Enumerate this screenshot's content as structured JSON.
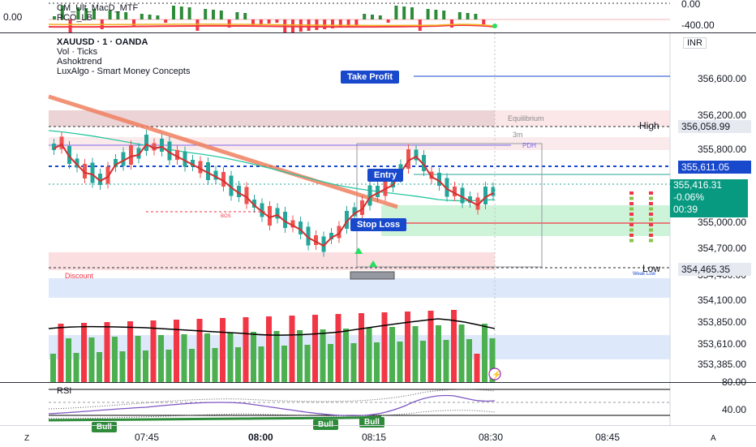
{
  "macd_pane": {
    "indicator_name": "CM_Ult_MacD_MTF",
    "indicator_sub": "RCO_LB",
    "left_value": "0.00",
    "axis_top": "0.00",
    "axis_bottom": "-400.00"
  },
  "main_pane": {
    "legend": {
      "symbol": "XAUUSD · 1 · OANDA",
      "line2": "Vol · Ticks",
      "line3": "Ashoktrend",
      "line4": "LuxAlgo - Smart Money Concepts"
    },
    "currency": "INR",
    "buttons": {
      "take_profit": "Take Profit",
      "entry": "Entry",
      "stop_loss": "Stop Loss"
    },
    "zone_labels": {
      "equilibrium": "Equilibrium",
      "pdh": "PDH",
      "three_m": "3m",
      "discount": "Discount",
      "bos": "BOS",
      "weak_low": "Weak Low"
    },
    "level_labels": {
      "high": "High",
      "low": "Low"
    },
    "price_axis": [
      "356,600.00",
      "356,200.00",
      "355,800.00",
      "355,000.00",
      "354,700.00",
      "354,400.00",
      "354,100.00",
      "353,850.00",
      "353,610.00",
      "353,385.00"
    ],
    "price_tags": {
      "high": "356,058.99",
      "entry_level": "355,611.05",
      "current": "355,416.31",
      "change": "-0.06%",
      "countdown": "00:39",
      "low": "354,465.35"
    },
    "colors": {
      "up": "#26a69a",
      "down": "#ef5350",
      "vol_up": "#4caf50",
      "vol_down": "#f23645",
      "accent_blue": "#1848cc",
      "trend_orange": "#f08060"
    }
  },
  "rsi_pane": {
    "title": "RSI",
    "axis_top": "80.00",
    "axis_mid": "40.00",
    "bull_labels": [
      "Bull",
      "Bull",
      "Bull"
    ]
  },
  "time_axis": {
    "labels": [
      "07:45",
      "08:00",
      "08:15",
      "08:30",
      "08:45"
    ],
    "left_icon_label": "Z",
    "right_icon_label": "A"
  }
}
